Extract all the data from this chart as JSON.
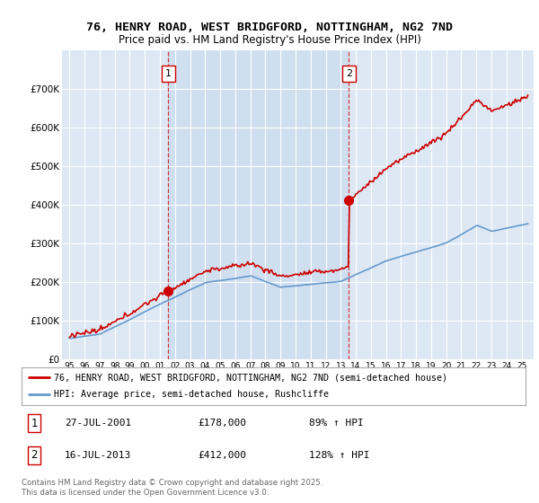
{
  "title_line1": "76, HENRY ROAD, WEST BRIDGFORD, NOTTINGHAM, NG2 7ND",
  "title_line2": "Price paid vs. HM Land Registry's House Price Index (HPI)",
  "background_color": "#dde8f4",
  "highlight_color": "#ccddf0",
  "line1_color": "#cc0000",
  "line2_color": "#6699cc",
  "sale1_date": 2001.56,
  "sale1_price": 178000,
  "sale2_date": 2013.54,
  "sale2_price": 412000,
  "legend_label1": "76, HENRY ROAD, WEST BRIDGFORD, NOTTINGHAM, NG2 7ND (semi-detached house)",
  "legend_label2": "HPI: Average price, semi-detached house, Rushcliffe",
  "annotation1_date": "27-JUL-2001",
  "annotation1_price": "£178,000",
  "annotation1_hpi": "89% ↑ HPI",
  "annotation2_date": "16-JUL-2013",
  "annotation2_price": "£412,000",
  "annotation2_hpi": "128% ↑ HPI",
  "footer": "Contains HM Land Registry data © Crown copyright and database right 2025.\nThis data is licensed under the Open Government Licence v3.0.",
  "ylim_max": 800000,
  "xlim_min": 1994.5,
  "xlim_max": 2025.8
}
